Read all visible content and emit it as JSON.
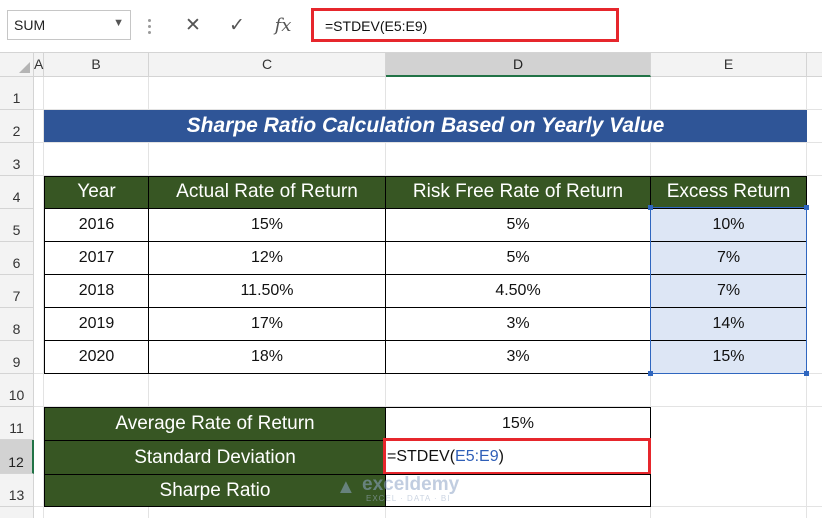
{
  "formula_bar": {
    "name_box": "SUM",
    "cancel_icon": "✕",
    "enter_icon": "✓",
    "fx_label": "fx",
    "formula": "=STDEV(E5:E9)"
  },
  "columns": [
    "A",
    "B",
    "C",
    "D",
    "E"
  ],
  "rows": [
    "1",
    "2",
    "3",
    "4",
    "5",
    "6",
    "7",
    "8",
    "9",
    "10",
    "11",
    "12",
    "13"
  ],
  "title": "Sharpe Ratio Calculation Based on Yearly Value",
  "table": {
    "headers": [
      "Year",
      "Actual Rate of Return",
      "Risk Free Rate of Return",
      "Excess Return"
    ],
    "rows": [
      [
        "2016",
        "15%",
        "5%",
        "10%"
      ],
      [
        "2017",
        "12%",
        "5%",
        "7%"
      ],
      [
        "2018",
        "11.50%",
        "4.50%",
        "7%"
      ],
      [
        "2019",
        "17%",
        "3%",
        "14%"
      ],
      [
        "2020",
        "18%",
        "3%",
        "15%"
      ]
    ]
  },
  "summary": {
    "avg_label": "Average Rate of Return",
    "avg_value": "15%",
    "std_label": "Standard Deviation",
    "std_formula_prefix": "=STDEV(",
    "std_formula_ref": "E5:E9",
    "std_formula_suffix": ")",
    "sharpe_label": "Sharpe Ratio",
    "sharpe_value": ""
  },
  "watermark": {
    "name": "exceldemy",
    "tagline": "EXCEL · DATA · BI"
  },
  "colors": {
    "title_bg": "#2f5597",
    "header_bg": "#375623",
    "highlight": "#dde6f5",
    "edit_border": "#e6262c",
    "selection": "#2f66bf"
  }
}
